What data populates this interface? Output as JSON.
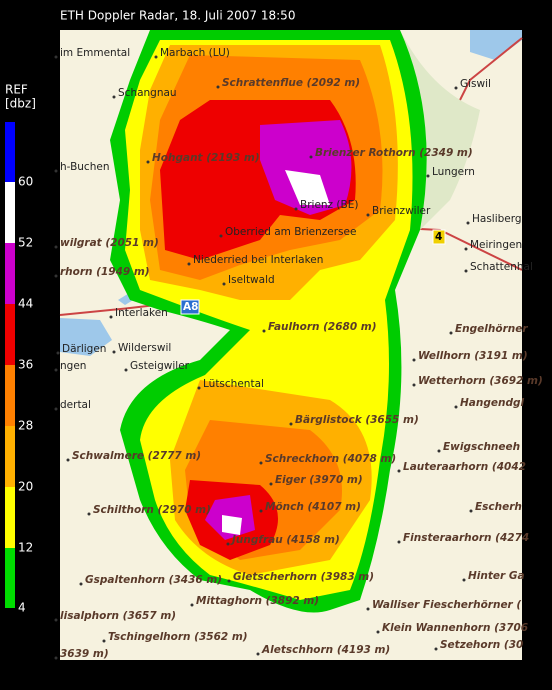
{
  "header": {
    "title": "ETH Doppler Radar, 18. Juli 2007 18:50"
  },
  "legend": {
    "title": "REF",
    "unit": "[dbz]",
    "labels": [
      "60",
      "52",
      "44",
      "36",
      "28",
      "20",
      "12",
      "4"
    ]
  },
  "road_signs": [
    "A8",
    "4"
  ],
  "places": [
    "im Emmental",
    "Marbach (LU)",
    "Schangnau",
    "Schrattenflue (2092 m)",
    "h-Buchen",
    "Hohgant (2193 m)",
    "Brienzer Rothorn (2349 m)",
    "Brienz (BE)",
    "Brienzwiler",
    "Lungern",
    "Giswil",
    "Hasliberg",
    "Meiringen",
    "Schattenhal",
    "wilgrat (2051 m)",
    "Oberried am Brienzersee",
    "rhorn (1949 m)",
    "Niederried bei Interlaken",
    "Iseltwald",
    "Interlaken",
    "Faulhorn (2680 m)",
    "Engelhörner",
    "Därligen",
    "Wilderswil",
    "Gsteigwiler",
    "ngen",
    "Wellhorn (3191 m)",
    "Lütschental",
    "Wetterhorn (3692 m)",
    "dertal",
    "Hangendgl",
    "Bärglistock (3655 m)",
    "Ewigschneeh",
    "Schwalmere (2777 m)",
    "Schreckhorn (4078 m)",
    "Lauteraarhorn (4042",
    "Eiger (3970 m)",
    "Schilthorn (2970 m)",
    "Mönch (4107 m)",
    "Escherh",
    "Jungfrau (4158 m)",
    "Finsteraarhorn (4274",
    "Hinter Ga",
    "Gspaltenhorn (3436 m)",
    "Gletscherhorn (3983 m)",
    "Walliser Fiescherhörner (",
    "Mittaghorn (3892 m)",
    "lisalphorn (3657 m)",
    "Klein Wannenhorn (3706",
    "Tschingelhorn (3562 m)",
    "Setzehorn (30",
    "3639 m)",
    "Aletschhorn (4193 m)"
  ]
}
